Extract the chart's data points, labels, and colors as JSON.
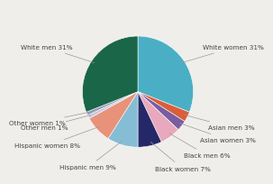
{
  "labels": [
    "White women 31%",
    "Asian men 3%",
    "Asian women 3%",
    "Black men 6%",
    "Black women 7%",
    "Hispanic men 9%",
    "Hispanic women 8%",
    "Other men 1%",
    "Other women 1%",
    "White men 31%"
  ],
  "values": [
    31,
    3,
    3,
    6,
    7,
    9,
    8,
    1,
    1,
    31
  ],
  "colors": [
    "#4aafc5",
    "#d95f3b",
    "#7a5ca0",
    "#e8a8be",
    "#252868",
    "#85bdd4",
    "#e8927a",
    "#c8c8e0",
    "#9999bb",
    "#1a6648"
  ],
  "label_fontsize": 5.2,
  "background_color": "#f0eeea",
  "label_color": "#444444",
  "line_color": "#999999"
}
